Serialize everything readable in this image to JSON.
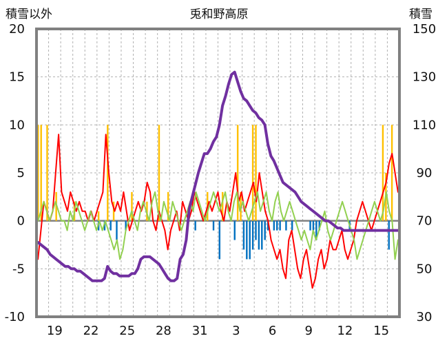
{
  "chart_data": {
    "type": "line",
    "title": "兎和野高原",
    "left_axis": {
      "label": "積雪以外",
      "range": [
        -10,
        20
      ],
      "ticks": [
        "20",
        "15",
        "10",
        "5",
        "0",
        "-5",
        "-10"
      ]
    },
    "right_axis": {
      "label": "積雪",
      "range": [
        30,
        150
      ],
      "ticks": [
        "150",
        "130",
        "110",
        "90",
        "70",
        "50",
        "30"
      ]
    },
    "x_tick_labels": [
      "19",
      "22",
      "25",
      "28",
      "31",
      "3",
      "6",
      "9",
      "12",
      "15"
    ],
    "grid": true,
    "colors": {
      "temperature_red": "#ff0000",
      "temperature_green": "#92d050",
      "snow_depth": "#7030a0",
      "precip_orange": "#ffc000",
      "snow_change_blue": "#0070c0",
      "frame": "#808080"
    },
    "series": [
      {
        "color": "#ff0000",
        "axis": "left",
        "values": [
          -4,
          -1,
          2,
          1,
          0,
          1,
          5,
          9,
          3,
          2,
          1,
          3,
          2,
          1,
          2,
          1,
          1,
          0,
          1,
          0,
          1,
          2,
          3,
          9,
          5,
          2,
          1,
          2,
          1,
          3,
          1,
          -1,
          0,
          1,
          2,
          1,
          2,
          4,
          3,
          0,
          -1,
          1,
          0,
          -1,
          -3,
          -1,
          0,
          1,
          -1,
          2,
          1,
          0,
          1,
          3,
          2,
          1,
          0,
          1,
          2,
          1,
          2,
          3,
          1,
          0,
          2,
          1,
          3,
          5,
          2,
          3,
          1,
          2,
          3,
          4,
          2,
          5,
          3,
          1,
          0,
          -2,
          -3,
          -4,
          -3,
          -5,
          -6,
          -2,
          -1,
          -3,
          -5,
          -6,
          -4,
          -3,
          -5,
          -7,
          -6,
          -4,
          -3,
          -5,
          -4,
          -2,
          -3,
          -3,
          -2,
          -1,
          -3,
          -4,
          -3,
          -2,
          0,
          1,
          2,
          1,
          0,
          -1,
          0,
          1,
          2,
          3,
          4,
          6,
          7,
          5,
          3
        ]
      },
      {
        "color": "#92d050",
        "axis": "left",
        "values": [
          0,
          1,
          2,
          1,
          0,
          1,
          2,
          1,
          0,
          0,
          -1,
          1,
          0,
          2,
          1,
          0,
          -1,
          0,
          1,
          0,
          -1,
          0,
          -1,
          0,
          -1,
          -2,
          -3,
          -2,
          -4,
          -3,
          -1,
          0,
          1,
          0,
          -1,
          1,
          2,
          1,
          0,
          2,
          3,
          1,
          0,
          2,
          1,
          0,
          2,
          1,
          0,
          -1,
          0,
          1,
          2,
          1,
          3,
          2,
          1,
          0,
          1,
          2,
          3,
          2,
          1,
          2,
          3,
          1,
          0,
          2,
          3,
          1,
          2,
          1,
          0,
          1,
          2,
          3,
          1,
          2,
          3,
          1,
          0,
          2,
          3,
          1,
          0,
          1,
          2,
          1,
          0,
          -1,
          -2,
          -1,
          -2,
          -3,
          -1,
          -2,
          -1,
          0,
          1,
          -1,
          -2,
          -1,
          0,
          1,
          2,
          1,
          0,
          -1,
          -2,
          -4,
          -3,
          -2,
          -1,
          0,
          1,
          2,
          1,
          0,
          1,
          3,
          1,
          0,
          -4,
          -2
        ]
      },
      {
        "color": "#7030a0",
        "axis": "right",
        "values": [
          61,
          60,
          59,
          58,
          56,
          55,
          54,
          53,
          52,
          51,
          51,
          50,
          50,
          49,
          49,
          48,
          47,
          46,
          45,
          45,
          45,
          45,
          46,
          51,
          49,
          48,
          48,
          47,
          47,
          47,
          47,
          48,
          48,
          50,
          54,
          55,
          55,
          55,
          54,
          53,
          52,
          50,
          48,
          46,
          45,
          45,
          46,
          54,
          56,
          62,
          75,
          80,
          85,
          90,
          94,
          98,
          98,
          100,
          103,
          105,
          110,
          118,
          122,
          127,
          131,
          132,
          128,
          124,
          121,
          120,
          118,
          116,
          115,
          113,
          112,
          110,
          102,
          97,
          95,
          92,
          89,
          86,
          85,
          84,
          83,
          82,
          80,
          78,
          77,
          76,
          75,
          74,
          73,
          72,
          71,
          70,
          70,
          69,
          68,
          67,
          67,
          66,
          66,
          66,
          66,
          66,
          66,
          66,
          66,
          66,
          66,
          66,
          66,
          66,
          66,
          66,
          66,
          66,
          66,
          66
        ]
      }
    ],
    "bars": [
      {
        "color": "#ffc000",
        "axis": "left",
        "values": [
          10,
          10,
          0,
          10,
          0,
          0,
          3,
          0,
          0,
          0,
          0,
          0,
          2,
          0,
          0,
          0,
          0,
          0,
          0,
          0,
          1,
          0,
          0,
          10,
          0,
          2,
          0,
          0,
          0,
          0,
          0,
          3,
          0,
          0,
          0,
          0,
          2,
          0,
          0,
          0,
          10,
          0,
          0,
          3,
          0,
          0,
          0,
          0,
          0,
          0,
          0,
          0,
          0,
          0,
          0,
          0,
          3,
          0,
          0,
          0,
          0,
          3,
          0,
          0,
          0,
          0,
          10,
          3,
          0,
          0,
          0,
          10,
          10,
          0,
          0,
          0,
          0,
          0,
          0,
          0,
          0,
          0,
          0,
          0,
          0,
          0,
          0,
          0,
          0,
          0,
          0,
          0,
          0,
          0,
          0,
          0,
          0,
          0,
          0,
          0,
          0,
          0,
          0,
          0,
          0,
          0,
          0,
          0,
          0,
          0,
          0,
          0,
          0,
          0,
          10,
          5,
          0,
          10,
          0,
          0
        ]
      },
      {
        "color": "#0070c0",
        "axis": "left",
        "values": [
          0,
          0,
          0,
          0,
          0,
          0,
          0,
          0,
          0,
          0,
          0,
          0,
          0,
          0,
          0,
          0,
          0,
          0,
          0,
          0,
          -1,
          0,
          -1,
          0,
          -1,
          0,
          -2,
          0,
          0,
          -1,
          0,
          0,
          0,
          0,
          0,
          0,
          0,
          0,
          0,
          0,
          0,
          0,
          0,
          0,
          0,
          0,
          0,
          0,
          0,
          0,
          0,
          0,
          -1,
          0,
          0,
          0,
          0,
          0,
          -1,
          0,
          -4,
          0,
          0,
          0,
          0,
          -2,
          0,
          0,
          -3,
          -4,
          -4,
          -3,
          -2,
          -3,
          -3,
          -2,
          -1,
          0,
          -1,
          -1,
          -1,
          0,
          -1,
          0,
          -1,
          0,
          0,
          0,
          0,
          0,
          -1,
          -1,
          -2,
          -1,
          0,
          0,
          0,
          0,
          0,
          0,
          0,
          0,
          0,
          -1,
          0,
          0,
          0,
          0,
          0,
          0,
          0,
          0,
          0,
          0,
          0,
          0,
          -3,
          0,
          0,
          0
        ]
      }
    ]
  }
}
